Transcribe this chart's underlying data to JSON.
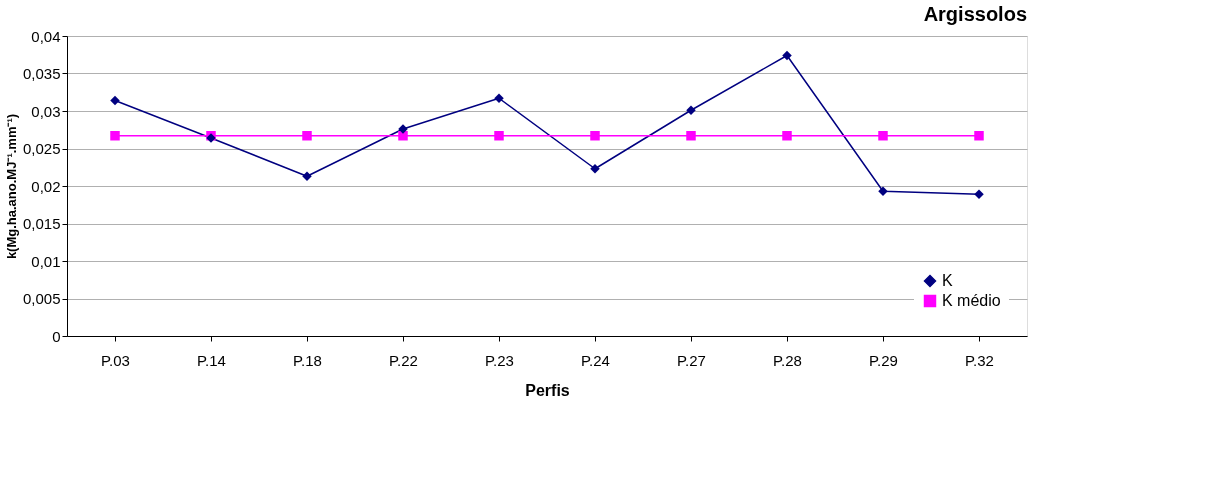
{
  "chart_data": {
    "type": "line",
    "title": "Argissolos",
    "xlabel": "Perfis",
    "ylabel": "k(Mg.ha.ano.MJ⁻¹.mm⁻¹)",
    "categories": [
      "P.03",
      "P.14",
      "P.18",
      "P.22",
      "P.23",
      "P.24",
      "P.27",
      "P.28",
      "P.29",
      "P.32"
    ],
    "series": [
      {
        "name": "K",
        "color": "#000080",
        "marker": "diamond",
        "values": [
          0.0314,
          0.0264,
          0.0213,
          0.0276,
          0.0317,
          0.0223,
          0.0301,
          0.0374,
          0.0193,
          0.0189
        ]
      },
      {
        "name": "K médio",
        "color": "#ff00ff",
        "marker": "square",
        "values": [
          0.0267,
          0.0267,
          0.0267,
          0.0267,
          0.0267,
          0.0267,
          0.0267,
          0.0267,
          0.0267,
          0.0267
        ]
      }
    ],
    "ylim": [
      0,
      0.04
    ],
    "yticks": [
      {
        "value": 0,
        "label": "0"
      },
      {
        "value": 0.005,
        "label": "0,005"
      },
      {
        "value": 0.01,
        "label": "0,01"
      },
      {
        "value": 0.015,
        "label": "0,015"
      },
      {
        "value": 0.02,
        "label": "0,02"
      },
      {
        "value": 0.025,
        "label": "0,025"
      },
      {
        "value": 0.03,
        "label": "0,03"
      },
      {
        "value": 0.035,
        "label": "0,035"
      },
      {
        "value": 0.04,
        "label": "0,04"
      }
    ],
    "grid": "y",
    "legend": "bottom right",
    "line_style": "solid"
  }
}
